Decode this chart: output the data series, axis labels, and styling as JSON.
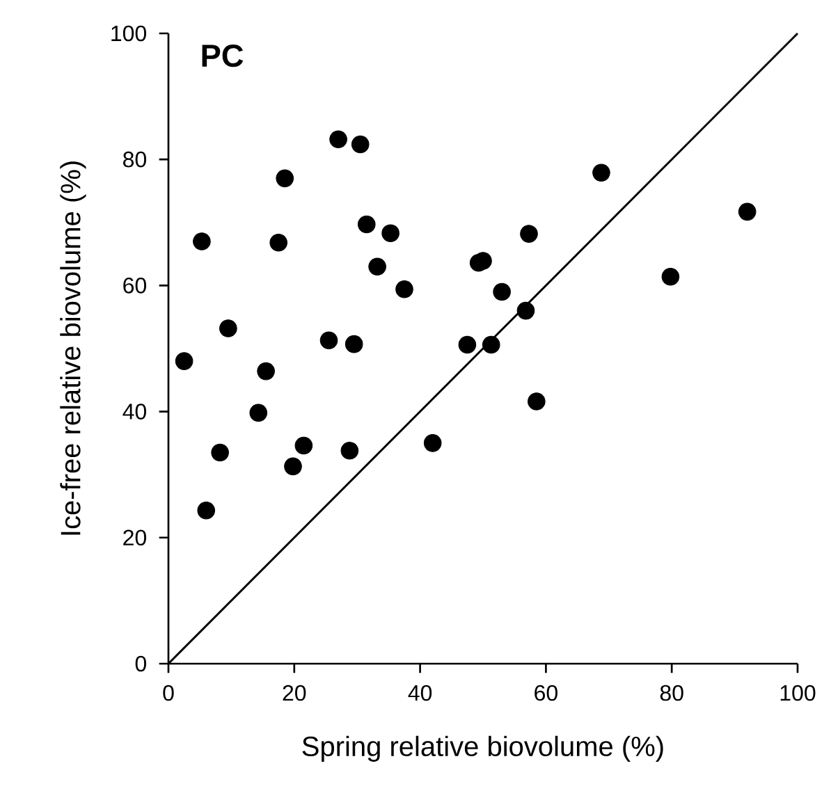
{
  "chart_data": {
    "type": "scatter",
    "title": "PC",
    "xlabel": "Spring relative biovolume (%)",
    "ylabel": "Ice-free relative biovolume (%)",
    "xlim": [
      0,
      100
    ],
    "ylim": [
      0,
      100
    ],
    "xticks": [
      0,
      20,
      40,
      60,
      80,
      100
    ],
    "yticks": [
      0,
      20,
      40,
      60,
      80,
      100
    ],
    "grid": false,
    "marker": "circle",
    "series": [
      {
        "color": "#000000",
        "x": [
          2.5,
          6,
          5.3,
          8.2,
          9.5,
          14.3,
          15.5,
          17.5,
          18.5,
          19.8,
          21.5,
          25.5,
          27,
          28.8,
          29.5,
          30.5,
          31.5,
          33.2,
          35.3,
          37.5,
          42,
          47.5,
          49.3,
          50,
          51.3,
          53,
          56.8,
          57.3,
          58.5,
          68.8,
          79.8,
          92
        ],
        "values": [
          48,
          24.3,
          67,
          33.5,
          53.2,
          39.8,
          46.4,
          66.8,
          77,
          31.3,
          34.6,
          51.3,
          83.2,
          33.8,
          50.7,
          82.4,
          69.7,
          63,
          68.3,
          59.4,
          35,
          50.6,
          63.6,
          63.9,
          50.6,
          59,
          56,
          68.2,
          41.6,
          77.9,
          61.4,
          71.7
        ]
      },
      {
        "type": "line",
        "color": "#000000",
        "marker": "none",
        "line_style": "solid",
        "x": [
          0,
          100
        ],
        "values": [
          0,
          100
        ]
      }
    ]
  }
}
